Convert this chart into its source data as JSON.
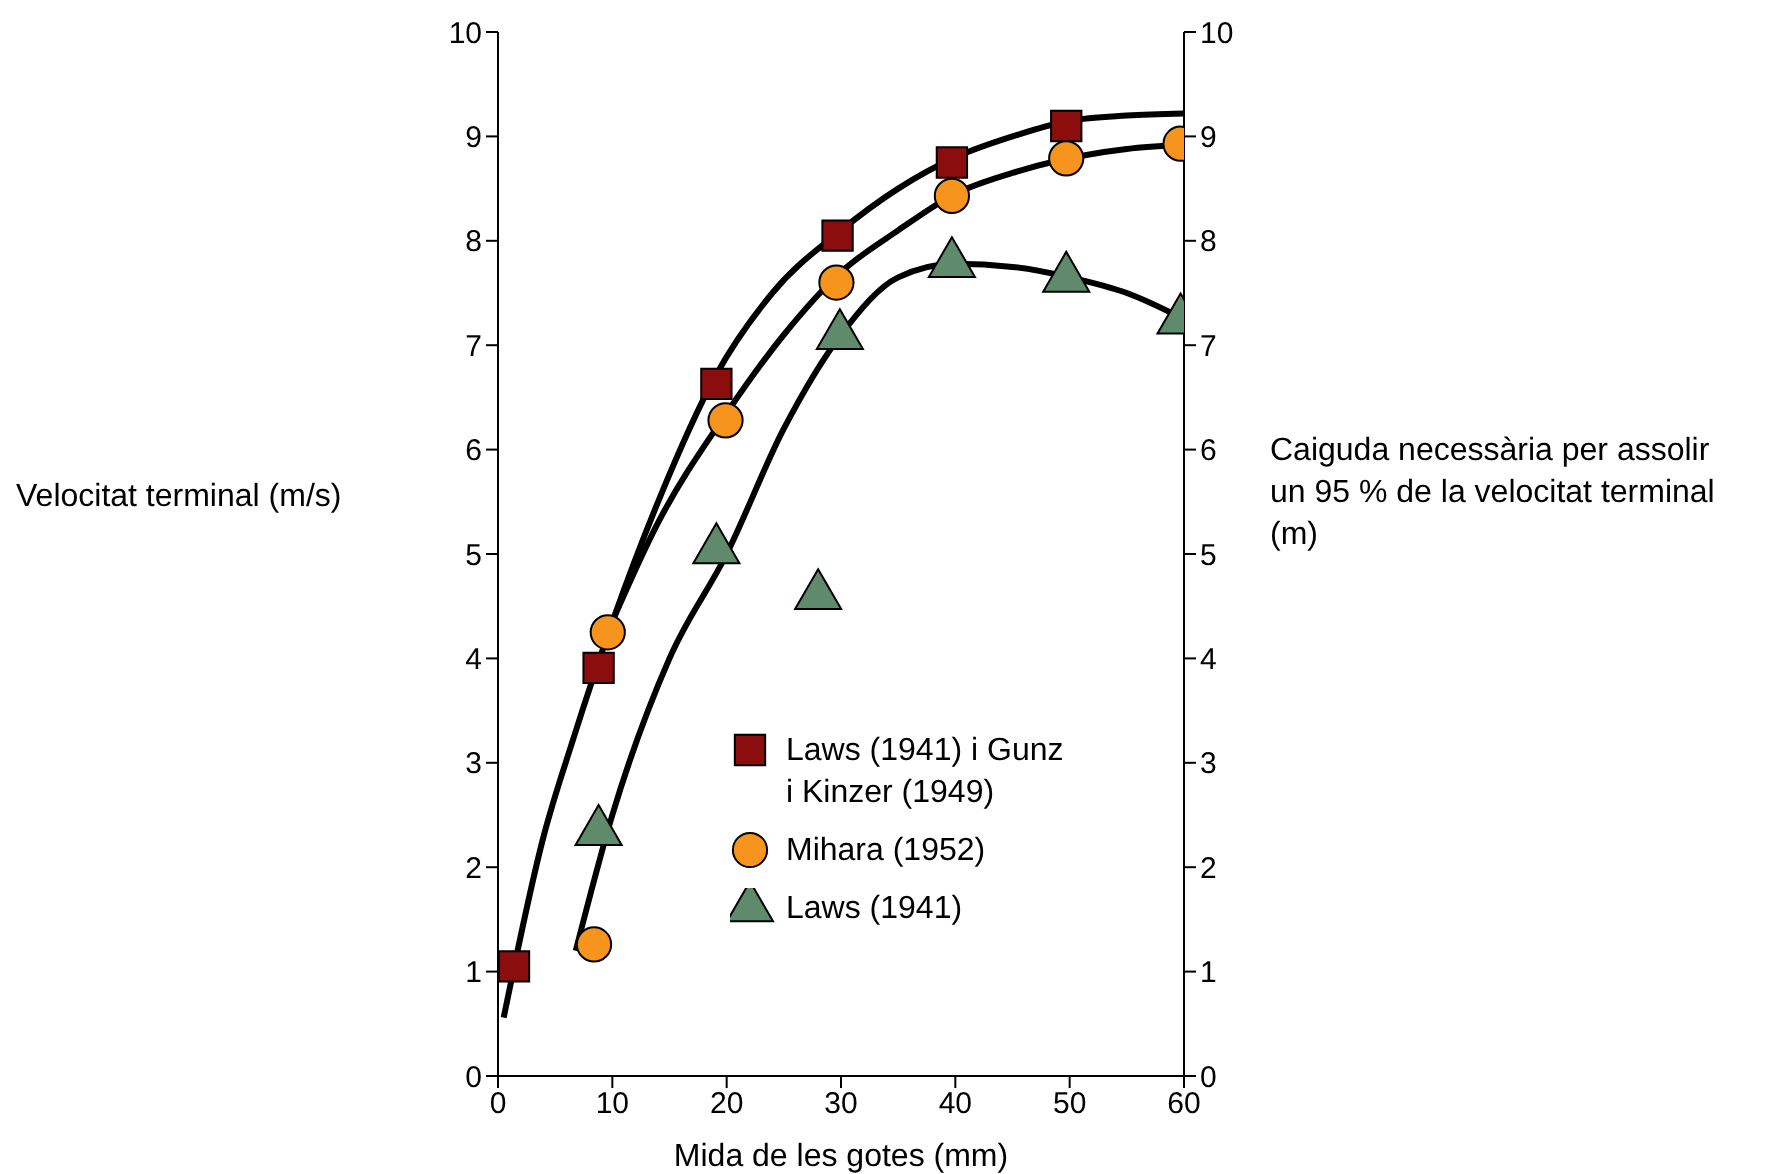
{
  "chart_data": {
    "type": "scatter",
    "xlabel": "Mida de les gotes (mm)",
    "ylabel": "Velocitat terminal (m/s)",
    "y2label": "Caiguda necessària per assolir un 95 % de la velocitat terminal (m)",
    "xlim": [
      0,
      60
    ],
    "xticks": [
      0,
      10,
      20,
      30,
      40,
      50,
      60
    ],
    "ylim": [
      0,
      10
    ],
    "yticks": [
      0,
      1,
      2,
      3,
      4,
      5,
      6,
      7,
      8,
      9,
      10
    ],
    "y2lim": [
      0,
      10
    ],
    "y2ticks": [
      0,
      1,
      2,
      3,
      4,
      5,
      6,
      7,
      8,
      9,
      10
    ],
    "legend": "bottom",
    "series": [
      {
        "type": "line",
        "color": "#000000",
        "marker": "none",
        "x": [
          0.5,
          4,
          6.5,
          14,
          19,
          24,
          30,
          35,
          40,
          45,
          50,
          55,
          60
        ],
        "values": [
          0.56,
          2.3,
          3.2,
          5.5,
          6.7,
          7.5,
          8.1,
          8.5,
          8.8,
          9.0,
          9.15,
          9.2,
          9.22
        ]
      },
      {
        "type": "line",
        "color": "#000000",
        "marker": "none",
        "x": [
          9,
          14,
          20,
          25,
          30,
          35,
          40,
          45,
          53,
          55,
          60
        ],
        "values": [
          4.1,
          5.3,
          6.35,
          7.1,
          7.7,
          8.1,
          8.45,
          8.65,
          8.85,
          8.88,
          8.92
        ]
      },
      {
        "type": "line",
        "color": "#000000",
        "marker": "none",
        "x": [
          6.8,
          10,
          15,
          20,
          25,
          30,
          35,
          40,
          45,
          50,
          55,
          60
        ],
        "values": [
          1.2,
          2.5,
          4.0,
          5.0,
          6.2,
          7.1,
          7.65,
          7.78,
          7.75,
          7.65,
          7.5,
          7.25
        ]
      },
      {
        "name": "Laws (1941) i Gunz i Kinzer (1949)",
        "marker": "square",
        "color": "#8b0d0d",
        "x": [
          1.4,
          8.8,
          19.1,
          29.7,
          39.7,
          49.7
        ],
        "values": [
          1.05,
          3.91,
          6.63,
          8.05,
          8.75,
          9.1
        ]
      },
      {
        "name": "Mihara (1952)",
        "marker": "circle",
        "color": "#f7941d",
        "x": [
          8.4,
          9.6,
          19.9,
          29.6,
          39.7,
          49.7,
          59.7
        ],
        "values": [
          1.26,
          4.25,
          6.28,
          7.6,
          8.43,
          8.79,
          8.93
        ]
      },
      {
        "name": "Laws (1941)",
        "marker": "triangle",
        "color": "#5f8a6b",
        "x": [
          8.8,
          19.1,
          28,
          29.9,
          39.7,
          49.7,
          59.7
        ],
        "values": [
          2.34,
          5.04,
          4.6,
          7.09,
          7.78,
          7.64,
          7.24
        ]
      }
    ]
  }
}
